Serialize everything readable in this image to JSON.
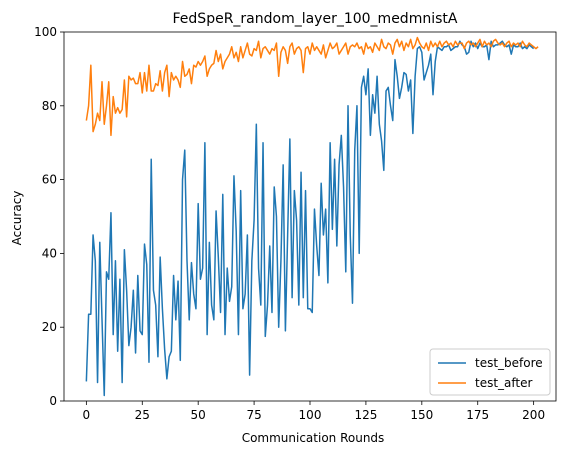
{
  "chart_data": {
    "type": "line",
    "title": "FedSpeR_random_layer_100_medmnistA",
    "xlabel": "Communication Rounds",
    "ylabel": "Accuracy",
    "xlim": [
      -10,
      210
    ],
    "ylim": [
      0,
      100
    ],
    "xticks": [
      0,
      25,
      50,
      75,
      100,
      125,
      150,
      175,
      200
    ],
    "yticks": [
      0,
      20,
      40,
      60,
      80,
      100
    ],
    "grid": false,
    "legend_position": "lower-right",
    "series": [
      {
        "name": "test_before",
        "color": "#1f77b4",
        "x_start": 0,
        "values": [
          5.3,
          23.5,
          23.5,
          45.0,
          38.0,
          5.0,
          43.0,
          22.0,
          1.5,
          35.0,
          33.0,
          51.0,
          18.0,
          38.0,
          13.5,
          33.0,
          5.0,
          41.0,
          30.0,
          15.0,
          20.0,
          30.0,
          13.0,
          34.0,
          19.0,
          18.0,
          42.5,
          37.0,
          10.5,
          65.5,
          30.0,
          26.0,
          12.0,
          39.0,
          25.0,
          14.0,
          6.0,
          12.0,
          13.5,
          34.0,
          22.0,
          32.5,
          11.0,
          60.0,
          68.0,
          38.0,
          22.0,
          37.5,
          29.0,
          25.0,
          53.5,
          33.0,
          36.0,
          70.0,
          18.0,
          43.0,
          26.0,
          22.0,
          51.5,
          39.0,
          24.0,
          56.0,
          18.0,
          36.0,
          27.0,
          31.0,
          61.0,
          46.0,
          18.0,
          57.0,
          25.0,
          29.0,
          45.0,
          7.0,
          38.0,
          49.0,
          75.0,
          36.0,
          26.0,
          70.0,
          17.5,
          26.0,
          42.0,
          24.0,
          58.0,
          50.0,
          20.0,
          38.0,
          64.0,
          19.0,
          45.0,
          71.0,
          28.0,
          57.0,
          49.0,
          26.0,
          62.0,
          28.0,
          57.0,
          25.0,
          25.0,
          24.0,
          52.0,
          42.0,
          34.0,
          59.0,
          45.0,
          52.0,
          32.0,
          70.0,
          46.5,
          65.5,
          42.0,
          64.0,
          72.0,
          58.0,
          35.0,
          80.0,
          45.0,
          26.5,
          68.0,
          80.0,
          40.0,
          85.0,
          88.0,
          83.0,
          90.0,
          72.0,
          83.0,
          78.0,
          88.0,
          75.0,
          70.5,
          62.5,
          84.0,
          85.0,
          80.0,
          76.0,
          92.5,
          88.0,
          82.0,
          85.0,
          89.0,
          88.5,
          84.0,
          87.0,
          72.5,
          88.0,
          95.5,
          96.0,
          94.5,
          87.0,
          89.0,
          91.0,
          94.0,
          83.0,
          92.0,
          96.0,
          95.5,
          95.0,
          96.0,
          96.0,
          96.5,
          95.0,
          95.5,
          96.0,
          96.0,
          97.5,
          96.5,
          96.0,
          94.0,
          94.5,
          97.5,
          96.0,
          97.0,
          95.5,
          97.0,
          96.0,
          96.0,
          96.5,
          92.5,
          97.5,
          96.0,
          96.5,
          96.5,
          97.0,
          97.5,
          96.5,
          96.0,
          96.5,
          94.0,
          96.5,
          96.0,
          96.0,
          97.0,
          95.5,
          96.0,
          95.5,
          96.5,
          96.0,
          95.5
        ],
        "_truncate_note": ""
      },
      {
        "name": "test_after",
        "color": "#ff7f0e",
        "x_start": 0,
        "values": [
          76.0,
          80.0,
          91.0,
          73.0,
          75.0,
          78.0,
          76.0,
          86.5,
          75.0,
          80.0,
          86.5,
          72.0,
          82.5,
          78.0,
          79.5,
          78.0,
          79.0,
          87.0,
          77.0,
          88.0,
          87.0,
          87.5,
          86.0,
          86.0,
          89.0,
          83.5,
          89.0,
          84.0,
          91.0,
          84.0,
          84.0,
          86.0,
          85.5,
          89.5,
          84.0,
          89.0,
          91.0,
          82.5,
          89.0,
          87.0,
          88.0,
          87.0,
          85.0,
          92.0,
          88.0,
          88.5,
          90.0,
          86.0,
          91.0,
          90.5,
          92.0,
          91.0,
          92.0,
          93.5,
          88.0,
          90.0,
          91.0,
          91.5,
          95.0,
          92.0,
          94.0,
          90.0,
          92.0,
          93.0,
          94.0,
          96.0,
          93.0,
          94.5,
          92.0,
          96.0,
          93.0,
          95.0,
          97.0,
          94.0,
          93.5,
          95.5,
          95.0,
          97.5,
          93.0,
          95.5,
          96.0,
          95.0,
          94.0,
          95.5,
          95.0,
          97.0,
          88.0,
          94.5,
          96.0,
          95.0,
          91.5,
          96.0,
          97.0,
          94.0,
          95.5,
          96.0,
          95.0,
          89.0,
          95.5,
          96.0,
          94.0,
          97.0,
          95.0,
          96.0,
          95.0,
          94.0,
          96.5,
          93.0,
          95.0,
          97.0,
          95.5,
          96.0,
          97.0,
          94.0,
          95.0,
          96.0,
          97.0,
          94.0,
          96.0,
          96.5,
          96.0,
          97.0,
          95.5,
          96.0,
          94.0,
          97.0,
          95.5,
          96.0,
          94.5,
          97.0,
          96.0,
          95.0,
          98.0,
          96.0,
          95.5,
          97.0,
          96.5,
          94.0,
          97.0,
          98.0,
          96.0,
          97.5,
          95.0,
          97.0,
          96.0,
          98.0,
          95.5,
          96.5,
          98.5,
          97.0,
          96.0,
          95.5,
          97.0,
          95.0,
          97.5,
          96.0,
          97.0,
          96.0,
          97.5,
          96.0,
          97.0,
          97.5,
          96.5,
          97.0,
          96.0,
          97.5,
          96.5,
          97.0,
          97.0,
          95.5,
          97.0,
          97.5,
          96.5,
          97.0,
          96.0,
          97.0,
          98.0,
          96.0,
          97.5,
          96.5,
          97.0,
          96.0,
          97.5,
          98.0,
          97.0,
          96.5,
          97.0,
          96.0,
          97.0,
          97.5,
          96.0,
          97.0,
          96.5,
          97.0,
          96.0,
          97.5,
          96.5,
          96.0,
          97.0,
          96.5,
          96.0,
          95.5,
          96.0
        ]
      }
    ]
  }
}
